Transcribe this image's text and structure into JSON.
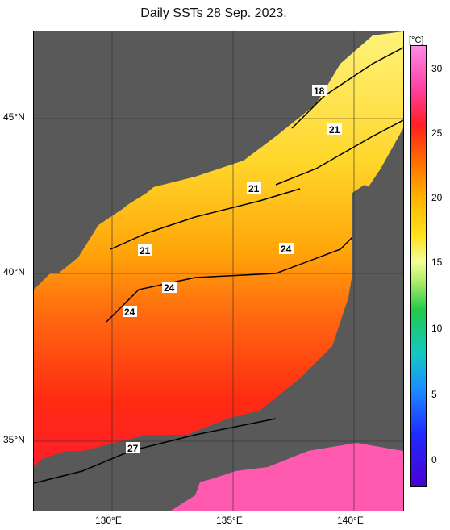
{
  "title": "Daily SSTs 28 Sep. 2023.",
  "lat_labels": [
    "45°N",
    "40°N",
    "35°N"
  ],
  "lon_labels": [
    "130°E",
    "135°E",
    "140°E"
  ],
  "colorbar": {
    "unit": "[°C]",
    "ticks": [
      "30",
      "25",
      "20",
      "15",
      "10",
      "5",
      "0"
    ],
    "range": [
      -2,
      31
    ]
  },
  "contour_labels": [
    "18",
    "21",
    "21",
    "21",
    "24",
    "24",
    "24",
    "27"
  ],
  "colors": {
    "land": "#595959",
    "warm": "#ff2a12",
    "mid": "#ffb000",
    "cool": "#ffe74a"
  }
}
